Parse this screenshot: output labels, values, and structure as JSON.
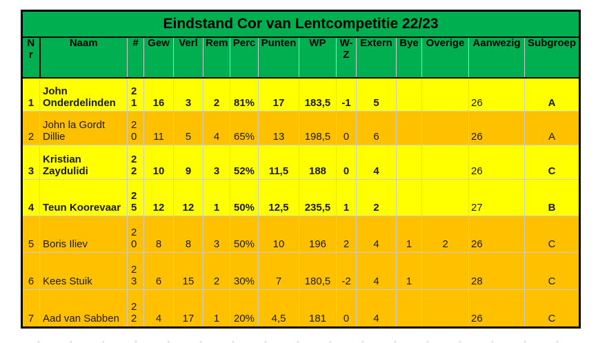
{
  "title": "Eindstand Cor van Lentcompetitie 22/23",
  "columns": [
    "Nr",
    "Naam",
    "#",
    "Gew",
    "Verl",
    "Rem",
    "Perc",
    "Punten",
    "WP",
    "W-Z",
    "Extern",
    "Bye",
    "Overige",
    "Aanwezig",
    "Subgroep"
  ],
  "rows": [
    {
      "nr": "1",
      "naam": "John Onderdelinden",
      "aantal": "21",
      "gew": "16",
      "verl": "3",
      "rem": "2",
      "perc": "81%",
      "punten": "17",
      "wp": "183,5",
      "wz": "-1",
      "extern": "5",
      "bye": "",
      "overige": "",
      "aanwezig": "26",
      "subgroep": "A",
      "bg": "yellow",
      "highlight": true
    },
    {
      "nr": "2",
      "naam": "John la Gordt Dillie",
      "aantal": "20",
      "gew": "11",
      "verl": "5",
      "rem": "4",
      "perc": "65%",
      "punten": "13",
      "wp": "198,5",
      "wz": "0",
      "extern": "6",
      "bye": "",
      "overige": "",
      "aanwezig": "26",
      "subgroep": "A",
      "bg": "orange",
      "highlight": false
    },
    {
      "nr": "3",
      "naam": "Kristian Zaydulidi",
      "aantal": "22",
      "gew": "10",
      "verl": "9",
      "rem": "3",
      "perc": "52%",
      "punten": "11,5",
      "wp": "188",
      "wz": "0",
      "extern": "4",
      "bye": "",
      "overige": "",
      "aanwezig": "26",
      "subgroep": "C",
      "bg": "yellow",
      "highlight": true
    },
    {
      "nr": "4",
      "naam": "Teun Koorevaar",
      "aantal": "25",
      "gew": "12",
      "verl": "12",
      "rem": "1",
      "perc": "50%",
      "punten": "12,5",
      "wp": "235,5",
      "wz": "1",
      "extern": "2",
      "bye": "",
      "overige": "",
      "aanwezig": "27",
      "subgroep": "B",
      "bg": "yellow",
      "highlight": true
    },
    {
      "nr": "5",
      "naam": "Boris Iliev",
      "aantal": "20",
      "gew": "8",
      "verl": "8",
      "rem": "3",
      "perc": "50%",
      "punten": "10",
      "wp": "196",
      "wz": "2",
      "extern": "4",
      "bye": "1",
      "overige": "2",
      "aanwezig": "26",
      "subgroep": "C",
      "bg": "orange",
      "highlight": false
    },
    {
      "nr": "6",
      "naam": "Kees Stuik",
      "aantal": "23",
      "gew": "6",
      "verl": "15",
      "rem": "2",
      "perc": "30%",
      "punten": "7",
      "wp": "180,5",
      "wz": "-2",
      "extern": "4",
      "bye": "1",
      "overige": "",
      "aanwezig": "28",
      "subgroep": "C",
      "bg": "orange",
      "highlight": false
    },
    {
      "nr": "7",
      "naam": "Aad van Sabben",
      "aantal": "22",
      "gew": "4",
      "verl": "17",
      "rem": "1",
      "perc": "20%",
      "punten": "4,5",
      "wp": "181",
      "wz": "0",
      "extern": "4",
      "bye": "",
      "overige": "",
      "aanwezig": "26",
      "subgroep": "C",
      "bg": "orange",
      "highlight": false
    }
  ],
  "colors": {
    "header_green": "#00B050",
    "row_yellow": "#FFFF00",
    "row_orange": "#FFC000",
    "grid_line": "#CCCCCC",
    "border": "#000000"
  }
}
